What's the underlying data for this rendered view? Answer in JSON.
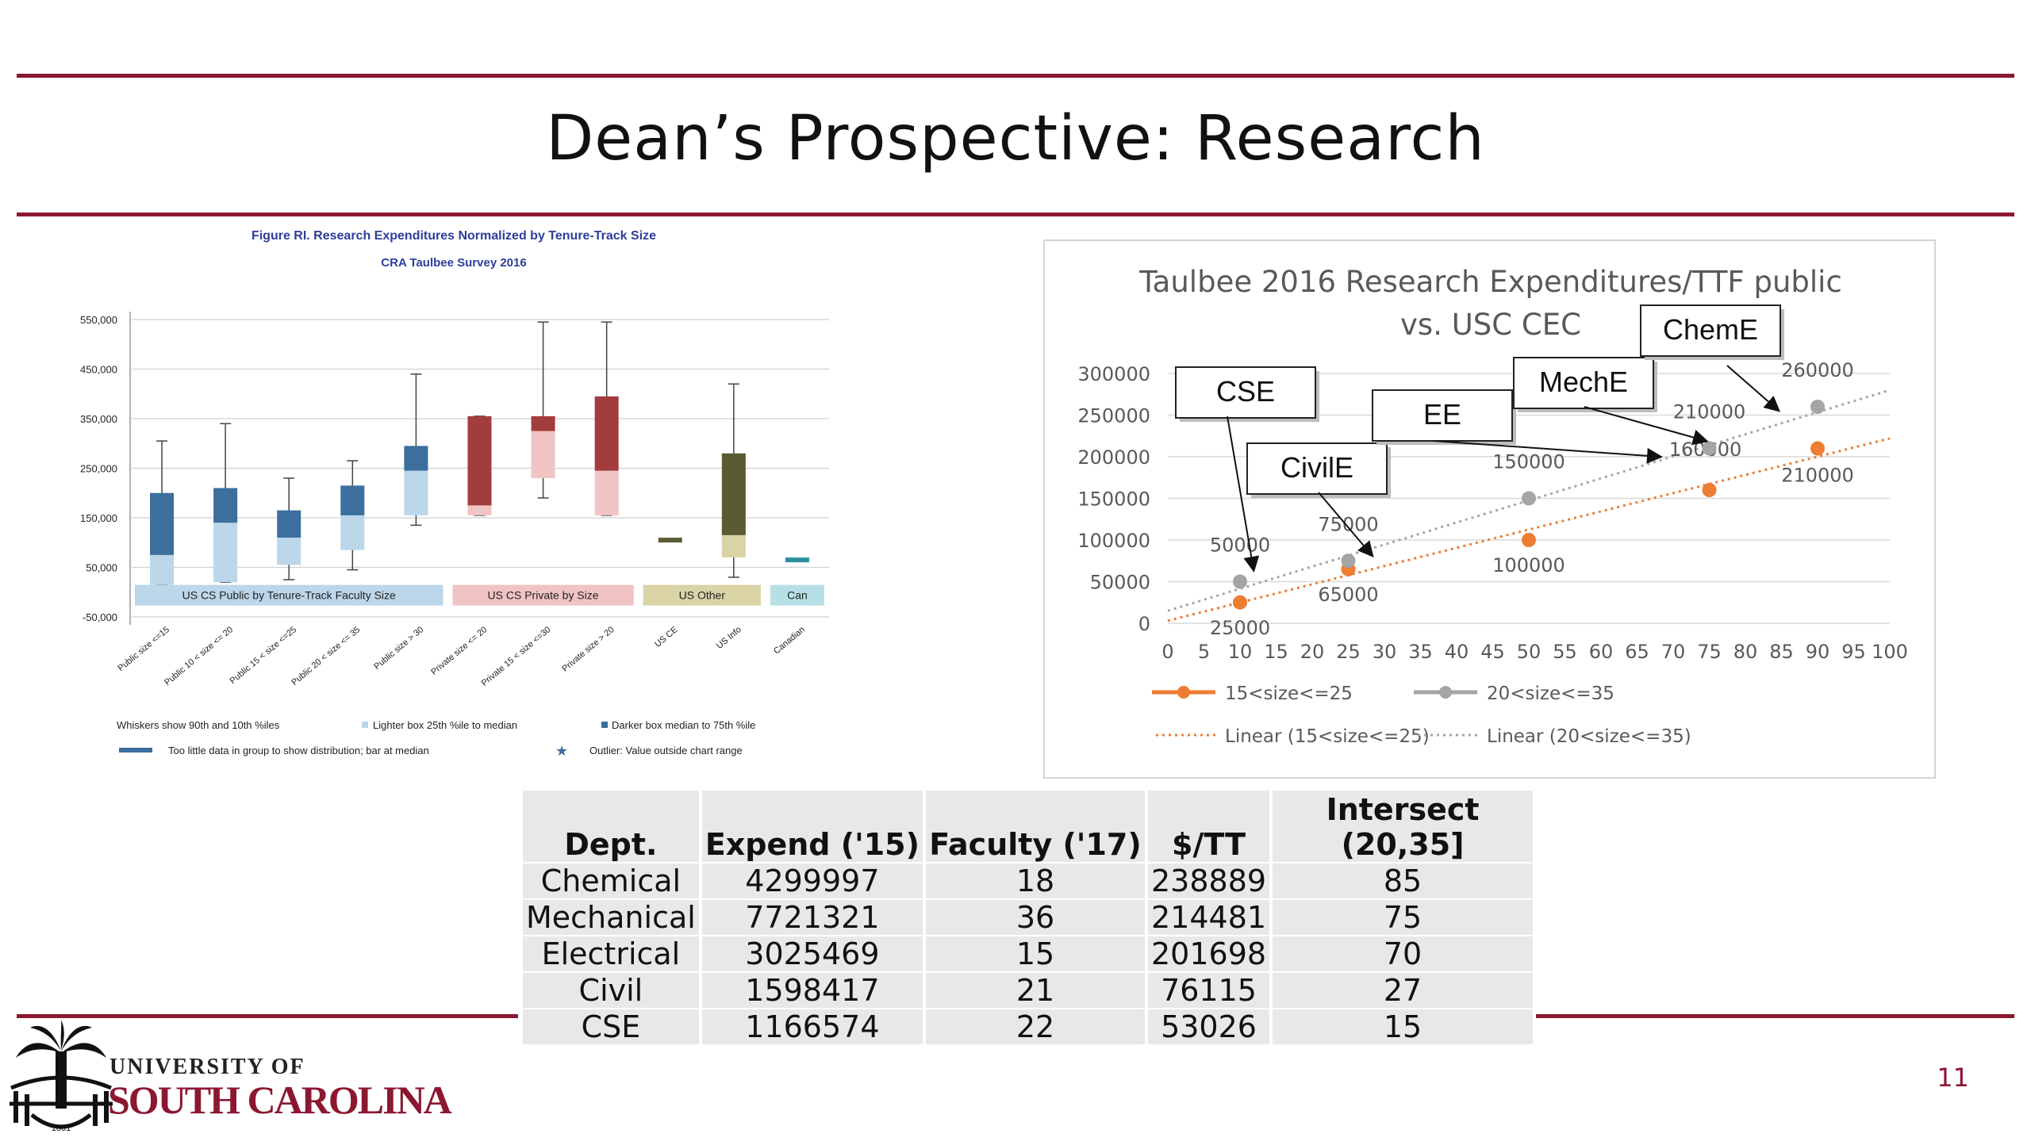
{
  "slide": {
    "title": "Dean’s Prospective:   Research",
    "page_number": "11"
  },
  "colors": {
    "garnet": "#8b1730",
    "orange_series": "#ed7d31",
    "gray_series": "#a5a5a5"
  },
  "logo": {
    "line1": "UNIVERSITY OF",
    "line2": "SOUTH CAROLINA",
    "seal_text": "1801"
  },
  "chart_data": [
    {
      "type": "box",
      "title": "Figure RI. Research Expenditures Normalized by Tenure-Track Size",
      "subtitle": "CRA Taulbee Survey 2016",
      "ylim": [
        -50000,
        550000
      ],
      "y_ticks": [
        "550,000",
        "450,000",
        "350,000",
        "250,000",
        "150,000",
        "50,000",
        "-50,000"
      ],
      "y_tick_values": [
        550000,
        450000,
        350000,
        250000,
        150000,
        50000,
        -50000
      ],
      "categories": [
        "Public size <=15",
        "Public 10 < size <= 20",
        "Public 15 < size <=25",
        "Public 20 < size <= 35",
        "Public size > 30",
        "Private size <= 20",
        "Private 15 < size <=30",
        "Private size > 20",
        "US CE",
        "US Info",
        "Canadian"
      ],
      "boxes": [
        {
          "p10": 15000,
          "q1": 15000,
          "median": 75000,
          "q3": 200000,
          "p90": 305000,
          "group": "public"
        },
        {
          "p10": 20000,
          "q1": 20000,
          "median": 140000,
          "q3": 210000,
          "p90": 340000,
          "group": "public"
        },
        {
          "p10": 25000,
          "q1": 55000,
          "median": 110000,
          "q3": 165000,
          "p90": 230000,
          "group": "public"
        },
        {
          "p10": 45000,
          "q1": 85000,
          "median": 155000,
          "q3": 215000,
          "p90": 265000,
          "group": "public"
        },
        {
          "p10": 135000,
          "q1": 155000,
          "median": 245000,
          "q3": 295000,
          "p90": 440000,
          "group": "public"
        },
        {
          "p10": 155000,
          "q1": 155000,
          "median": 175000,
          "q3": 355000,
          "p90": 355000,
          "group": "private"
        },
        {
          "p10": 190000,
          "q1": 230000,
          "median": 325000,
          "q3": 355000,
          "p90": 545000,
          "group": "private"
        },
        {
          "p10": 155000,
          "q1": 155000,
          "median": 245000,
          "q3": 395000,
          "p90": 545000,
          "group": "private"
        },
        {
          "median": 105000,
          "bar_only": true,
          "group": "other"
        },
        {
          "p10": 30000,
          "q1": 70000,
          "median": 115000,
          "q3": 280000,
          "p90": 420000,
          "group": "other"
        },
        {
          "median": 65000,
          "bar_only": true,
          "group": "canadian"
        }
      ],
      "group_labels": [
        {
          "text": "US CS Public by Tenure-Track Faculty Size",
          "group": "public"
        },
        {
          "text": "US CS Private by Size",
          "group": "private"
        },
        {
          "text": "US Other",
          "group": "other"
        },
        {
          "text": "Can",
          "group": "canadian"
        }
      ],
      "legend": [
        "Whiskers show 90th and 10th %iles",
        "Lighter box  25th %ile to median",
        "Darker box  median to 75th %ile",
        "Too little data in group to show distribution; bar at median",
        "Outlier: Value outside chart range"
      ]
    },
    {
      "type": "scatter",
      "title_line1": "Taulbee 2016 Research Expenditures/TTF public",
      "title_line2": "vs. USC CEC",
      "xlim": [
        0,
        100
      ],
      "ylim": [
        0,
        300000
      ],
      "x_ticks": [
        "0",
        "5",
        "10",
        "15",
        "20",
        "25",
        "30",
        "35",
        "40",
        "45",
        "50",
        "55",
        "60",
        "65",
        "70",
        "75",
        "80",
        "85",
        "90",
        "95",
        "100"
      ],
      "y_ticks": [
        "300000",
        "250000",
        "200000",
        "150000",
        "100000",
        "50000",
        "0"
      ],
      "series": [
        {
          "name": "15<size<=25",
          "color": "#ed7d31",
          "x": [
            10,
            25,
            50,
            75,
            90
          ],
          "y": [
            25000,
            65000,
            100000,
            160000,
            210000
          ],
          "labels": [
            "25000",
            "65000",
            "100000",
            "160000",
            "210000"
          ]
        },
        {
          "name": "20<size<=35",
          "color": "#a5a5a5",
          "x": [
            10,
            25,
            50,
            75,
            90
          ],
          "y": [
            50000,
            75000,
            150000,
            210000,
            260000
          ],
          "labels": [
            "50000",
            "75000",
            "150000",
            "210000",
            "260000"
          ]
        }
      ],
      "trendlines": [
        {
          "name": "Linear (15<size<=25)",
          "color": "#ed7d31",
          "x": [
            0,
            100
          ],
          "y": [
            3000,
            222000
          ]
        },
        {
          "name": "Linear (20<size<=35)",
          "color": "#a5a5a5",
          "x": [
            0,
            100
          ],
          "y": [
            15000,
            280000
          ]
        }
      ],
      "callouts": [
        "CSE",
        "CivilE",
        "EE",
        "MechE",
        "ChemE"
      ],
      "legend": [
        "15<size<=25",
        "20<size<=35",
        "Linear (15<size<=25)",
        "Linear (20<size<=35)"
      ]
    }
  ],
  "table": {
    "headers": [
      "Dept.",
      "Expend ('15)",
      "Faculty ('17)",
      "$/TT",
      "Intersect"
    ],
    "header_extra": "(20,35]",
    "rows": [
      [
        "Chemical",
        "4299997",
        "18",
        "238889",
        "85"
      ],
      [
        "Mechanical",
        "7721321",
        "36",
        "214481",
        "75"
      ],
      [
        "Electrical",
        "3025469",
        "15",
        "201698",
        "70"
      ],
      [
        "Civil",
        "1598417",
        "21",
        "76115",
        "27"
      ],
      [
        "CSE",
        "1166574",
        "22",
        "53026",
        "15"
      ]
    ]
  }
}
